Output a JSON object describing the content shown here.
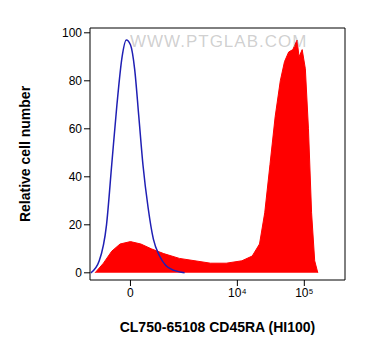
{
  "chart_data": {
    "type": "line",
    "watermark": "WWW.PTGLAB.COM",
    "xlabel": "CL750-65108 CD45RA (HI100)",
    "ylabel": "Relative cell number",
    "log": "x",
    "xlim": [
      -800,
      400000
    ],
    "xticks": [
      0,
      {
        "value": 10000,
        "label": "10⁴"
      },
      {
        "value": 100000,
        "label": "10⁵"
      }
    ],
    "ylim": [
      -3,
      102
    ],
    "yticks": [
      0,
      20,
      40,
      60,
      80,
      100
    ],
    "series": [
      {
        "type": "area",
        "color": "#ff0000",
        "x": [
          -630,
          -408,
          -241,
          -115,
          0,
          115,
          278,
          568,
          1157,
          2157,
          3860,
          6754,
          11690,
          16760,
          21550,
          25780,
          30860,
          36870,
          44010,
          50810,
          58570,
          67540,
          77940,
          83560,
          92960,
          103560,
          115180,
          128090,
          142420,
          158360
        ],
        "values": [
          0,
          4,
          9,
          12,
          13,
          12,
          10,
          8,
          6,
          5,
          4,
          4,
          5,
          7,
          12,
          25,
          45,
          65,
          80,
          88,
          92,
          93,
          97,
          90,
          93,
          85,
          60,
          25,
          5,
          0
        ]
      },
      {
        "type": "line",
        "color": "#1f1fb4",
        "x": [
          -768,
          -511,
          -340,
          -241,
          -158,
          -89,
          -41,
          0,
          41,
          89,
          143,
          223,
          319,
          458,
          630,
          926,
          1434
        ],
        "values": [
          0,
          5,
          20,
          45,
          70,
          90,
          97,
          95,
          85,
          65,
          45,
          27,
          14,
          7,
          3,
          1,
          0
        ]
      }
    ]
  }
}
